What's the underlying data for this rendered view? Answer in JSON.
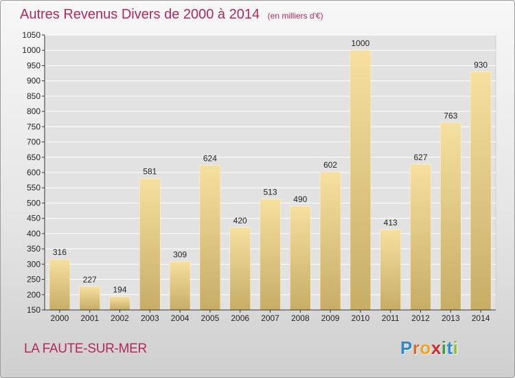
{
  "header": {
    "title": "Autres Revenus Divers de 2000 à 2014",
    "unit": "(en milliers d'€)"
  },
  "footer": {
    "location": "LA FAUTE-SUR-MER",
    "logo": {
      "text": "Proxiti",
      "letters": [
        {
          "char": "P",
          "color": "#2f88c8"
        },
        {
          "char": "r",
          "color": "#e3672b"
        },
        {
          "char": "o",
          "color": "#f3a21d"
        },
        {
          "char": "x",
          "color": "#d6262b"
        },
        {
          "char": "i",
          "color": "#3a9b3c"
        },
        {
          "char": "t",
          "color": "#2f88c8"
        },
        {
          "char": "i",
          "color": "#8dbf33"
        }
      ]
    }
  },
  "colors": {
    "title": "#b3275e",
    "bar_top": "#f6e0a0",
    "bar_bottom": "#c7ad66",
    "grid": "#ffffff",
    "axis": "#333333"
  },
  "chart_data": {
    "type": "bar",
    "categories": [
      "2000",
      "2001",
      "2002",
      "2003",
      "2004",
      "2005",
      "2006",
      "2007",
      "2008",
      "2009",
      "2010",
      "2011",
      "2012",
      "2013",
      "2014"
    ],
    "values": [
      316,
      227,
      194,
      581,
      309,
      624,
      420,
      513,
      490,
      602,
      1000,
      413,
      627,
      763,
      930
    ],
    "ylim": [
      150,
      1050
    ],
    "yticks": [
      150,
      200,
      250,
      300,
      350,
      400,
      450,
      500,
      550,
      600,
      650,
      700,
      750,
      800,
      850,
      900,
      950,
      1000,
      1050
    ],
    "grid": true,
    "data_labels": true
  }
}
